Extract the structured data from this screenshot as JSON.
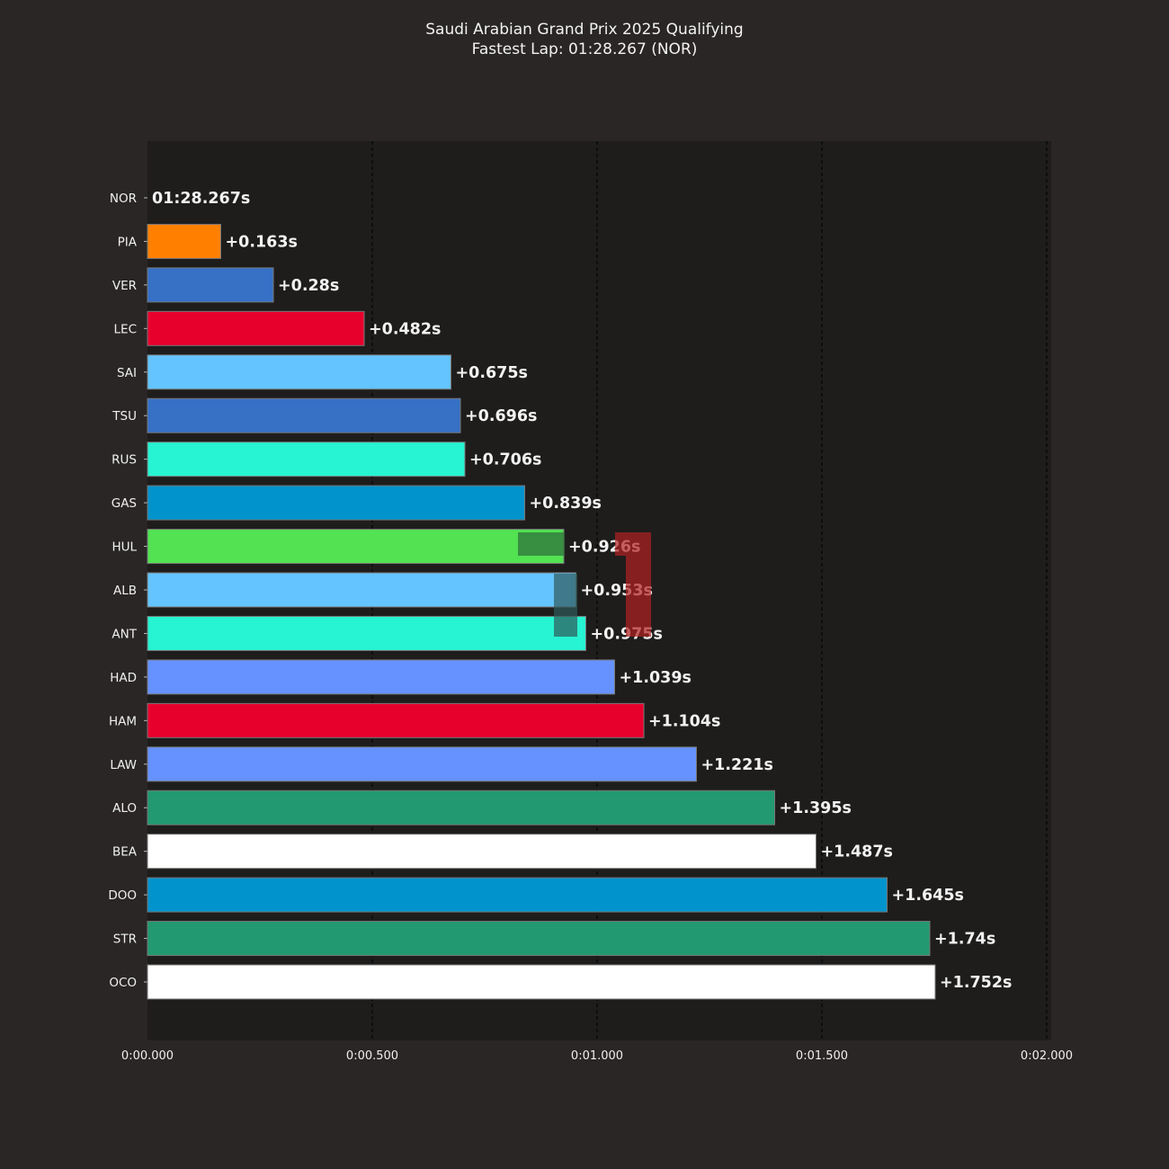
{
  "chart_data": {
    "type": "bar",
    "orientation": "horizontal",
    "title": "Saudi Arabian Grand Prix 2025 Qualifying",
    "subtitle": "Fastest Lap: 01:28.267 (NOR)",
    "categories": [
      "NOR",
      "PIA",
      "VER",
      "LEC",
      "SAI",
      "TSU",
      "RUS",
      "GAS",
      "HUL",
      "ALB",
      "ANT",
      "HAD",
      "HAM",
      "LAW",
      "ALO",
      "BEA",
      "DOO",
      "STR",
      "OCO"
    ],
    "values": [
      0,
      0.163,
      0.28,
      0.482,
      0.675,
      0.696,
      0.706,
      0.839,
      0.926,
      0.953,
      0.975,
      1.039,
      1.104,
      1.221,
      1.395,
      1.487,
      1.645,
      1.74,
      1.752
    ],
    "data_labels": [
      "01:28.267s",
      "+0.163s",
      "+0.28s",
      "+0.482s",
      "+0.675s",
      "+0.696s",
      "+0.706s",
      "+0.839s",
      "+0.926s",
      "+0.953s",
      "+0.975s",
      "+1.039s",
      "+1.104s",
      "+1.221s",
      "+1.395s",
      "+1.487s",
      "+1.645s",
      "+1.74s",
      "+1.752s"
    ],
    "colors": [
      "#ff8000",
      "#ff8000",
      "#3671c6",
      "#e8002d",
      "#64c4ff",
      "#3671c6",
      "#27f4d2",
      "#0093cc",
      "#52e252",
      "#64c4ff",
      "#27f4d2",
      "#6692ff",
      "#e8002d",
      "#6692ff",
      "#229971",
      "#ffffff",
      "#0093cc",
      "#229971",
      "#ffffff"
    ],
    "xlim": [
      0,
      2.0
    ],
    "xticks": [
      0,
      0.5,
      1.0,
      1.5,
      2.0
    ],
    "xtick_labels": [
      "0:00.000",
      "0:00.500",
      "0:01.000",
      "0:01.500",
      "0:02.000"
    ],
    "grid": "vertical dashed",
    "xlabel": "",
    "ylabel": ""
  },
  "theme": {
    "background": "#292625",
    "plot_background": "#1e1d1c",
    "text": "#f2f2f2",
    "grid": "#000000"
  },
  "watermark": {
    "description": "F1 logo watermark overlay",
    "colors": [
      "#b22222",
      "#2e6b3a"
    ]
  }
}
